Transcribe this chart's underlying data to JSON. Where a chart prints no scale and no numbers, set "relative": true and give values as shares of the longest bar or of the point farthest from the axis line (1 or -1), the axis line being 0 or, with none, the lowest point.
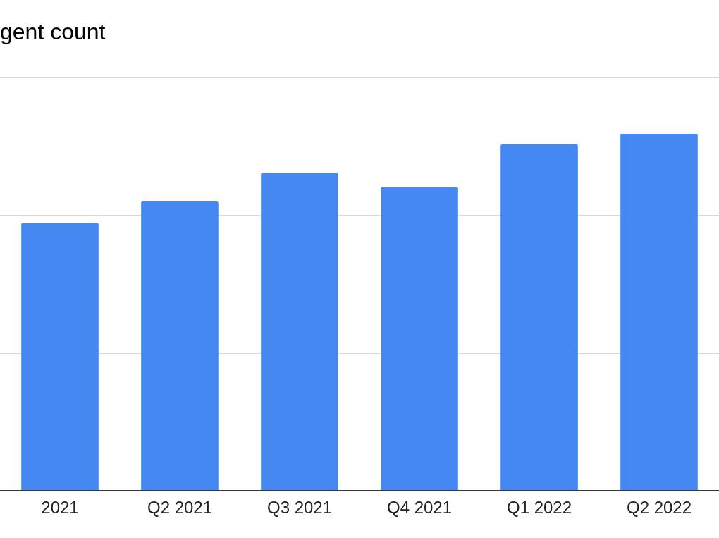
{
  "chart_data": {
    "type": "bar",
    "title": "gent count",
    "categories": [
      "2021",
      "Q2 2021",
      "Q3 2021",
      "Q4 2021",
      "Q1 2022",
      "Q2 2022"
    ],
    "values": [
      0.75,
      0.81,
      0.89,
      0.85,
      0.97,
      1
    ],
    "color": "#4688f1",
    "relative": true,
    "ref_lines": [
      {
        "axis": "y",
        "value": 0.386,
        "color": "#d9d9d9"
      },
      {
        "axis": "y",
        "value": 0.771,
        "color": "#d9d9d9"
      },
      {
        "axis": "y",
        "value": 1.157,
        "color": "#d9d9d9"
      }
    ],
    "legend": false
  }
}
